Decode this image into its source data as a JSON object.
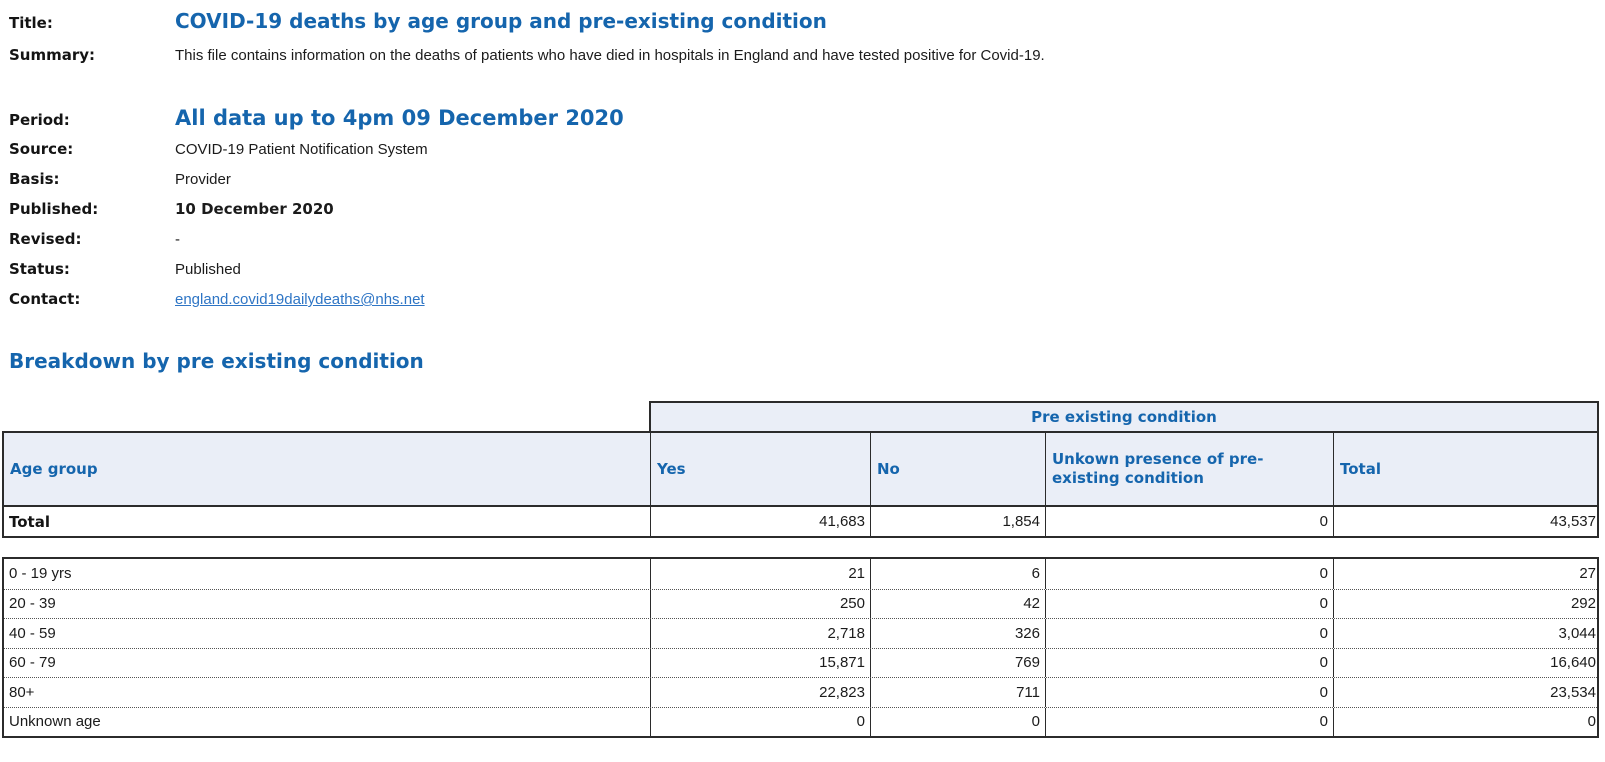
{
  "colors": {
    "accent_blue": "#1565ad",
    "link_blue": "#2e75c5",
    "header_bg": "#eaeef7",
    "text": "#1b1b1b"
  },
  "info": {
    "title": {
      "label": "Title:",
      "value": "COVID-19 deaths by age group and pre-existing condition"
    },
    "summary": {
      "label": "Summary:",
      "value": "This file contains information on the deaths of patients who have died in hospitals in England and have tested positive for Covid-19."
    },
    "period": {
      "label": "Period:",
      "value": "All data up to 4pm 09 December 2020"
    },
    "source": {
      "label": "Source:",
      "value": "COVID-19 Patient Notification System"
    },
    "basis": {
      "label": "Basis:",
      "value": "Provider"
    },
    "published": {
      "label": "Published:",
      "value": "10 December 2020"
    },
    "revised": {
      "label": "Revised:",
      "value": "-"
    },
    "status": {
      "label": "Status:",
      "value": "Published"
    },
    "contact": {
      "label": "Contact:",
      "value": "england.covid19dailydeaths@nhs.net"
    }
  },
  "section": {
    "heading": "Breakdown by pre existing condition"
  },
  "table": {
    "group_header": "Pre existing condition",
    "columns": {
      "age": "Age group",
      "yes": "Yes",
      "no": "No",
      "unknown": "Unkown presence of pre-existing condition",
      "total": "Total"
    },
    "total_row": {
      "age": "Total",
      "yes": "41,683",
      "no": "1,854",
      "unknown": "0",
      "total": "43,537"
    },
    "rows": [
      {
        "age": "0 - 19 yrs",
        "yes": "21",
        "no": "6",
        "unknown": "0",
        "total": "27"
      },
      {
        "age": "20 - 39",
        "yes": "250",
        "no": "42",
        "unknown": "0",
        "total": "292"
      },
      {
        "age": "40 - 59",
        "yes": "2,718",
        "no": "326",
        "unknown": "0",
        "total": "3,044"
      },
      {
        "age": "60 - 79",
        "yes": "15,871",
        "no": "769",
        "unknown": "0",
        "total": "16,640"
      },
      {
        "age": "80+",
        "yes": "22,823",
        "no": "711",
        "unknown": "0",
        "total": "23,534"
      },
      {
        "age": "Unknown age",
        "yes": "0",
        "no": "0",
        "unknown": "0",
        "total": "0"
      }
    ]
  }
}
